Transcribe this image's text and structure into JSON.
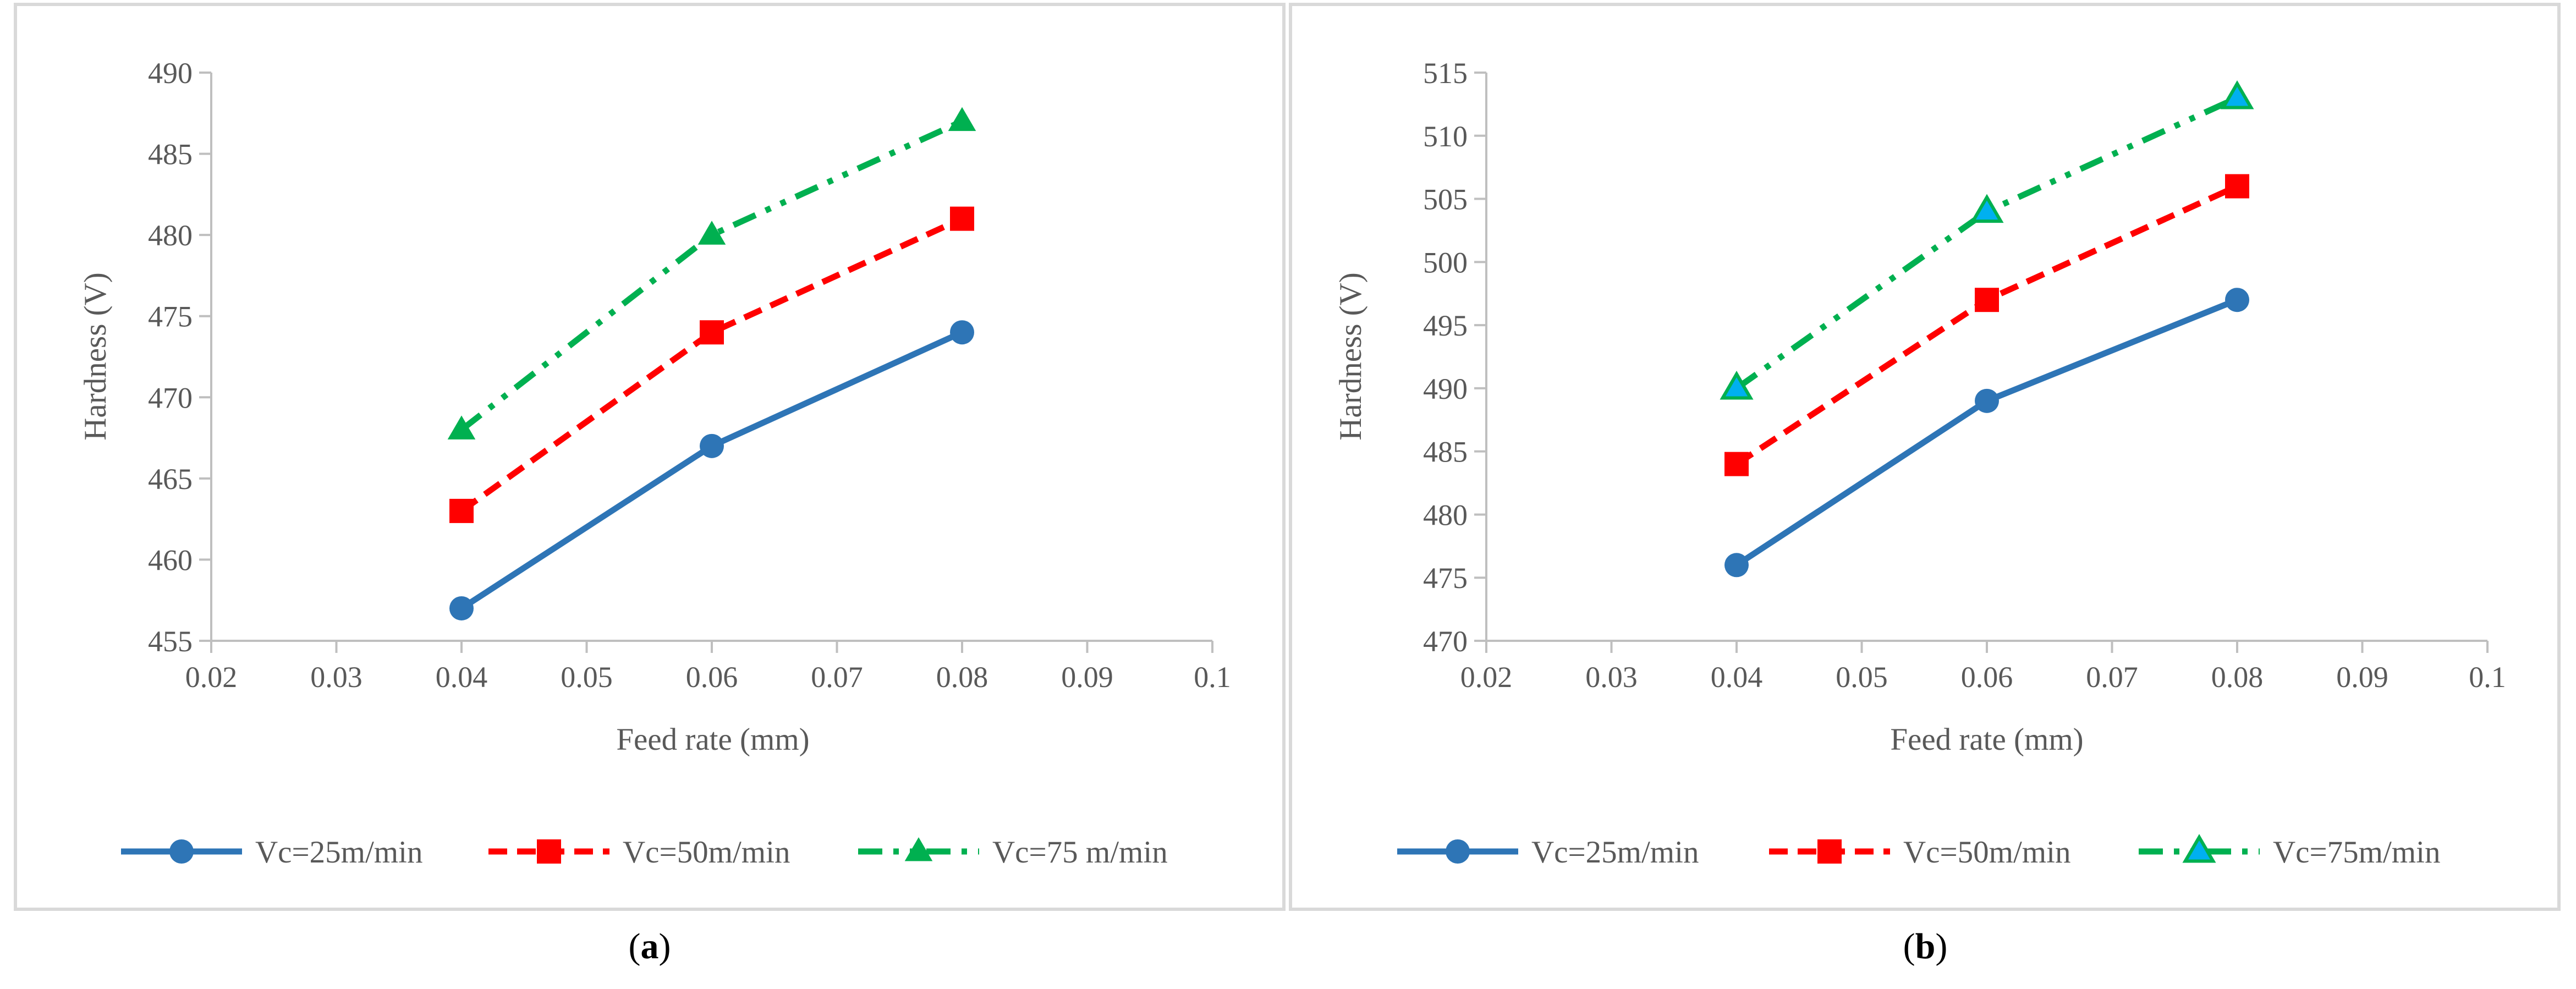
{
  "chart_data": [
    {
      "type": "line",
      "xlabel": "Feed rate (mm)",
      "ylabel": "Hardness (V)",
      "xlim": [
        0.02,
        0.1
      ],
      "xticks": [
        "0.02",
        "0.03",
        "0.04",
        "0.05",
        "0.06",
        "0.07",
        "0.08",
        "0.09",
        "0.1"
      ],
      "ylim": [
        455,
        490
      ],
      "yticks": [
        "455",
        "460",
        "465",
        "470",
        "475",
        "480",
        "485",
        "490"
      ],
      "grid": false,
      "legend_position": "bottom",
      "caption": {
        "open": "(",
        "letter": "a",
        "close": ")"
      },
      "series": [
        {
          "name": "Vc=25m/min",
          "x": [
            0.04,
            0.06,
            0.08
          ],
          "y": [
            457,
            467,
            474
          ],
          "color": "#2E75B6",
          "marker": "circle",
          "dash": "solid"
        },
        {
          "name": "Vc=50m/min",
          "x": [
            0.04,
            0.06,
            0.08
          ],
          "y": [
            463,
            474,
            481
          ],
          "color": "#FF0000",
          "marker": "square",
          "dash": "dash"
        },
        {
          "name": "Vc=75 m/min",
          "x": [
            0.04,
            0.06,
            0.08
          ],
          "y": [
            468,
            480,
            487
          ],
          "color": "#00B050",
          "marker": "triangle",
          "dash": "dashdotdot"
        }
      ]
    },
    {
      "type": "line",
      "xlabel": "Feed rate (mm)",
      "ylabel": "Hardness (V)",
      "xlim": [
        0.02,
        0.1
      ],
      "xticks": [
        "0.02",
        "0.03",
        "0.04",
        "0.05",
        "0.06",
        "0.07",
        "0.08",
        "0.09",
        "0.1"
      ],
      "ylim": [
        470,
        515
      ],
      "yticks": [
        "470",
        "475",
        "480",
        "485",
        "490",
        "495",
        "500",
        "505",
        "510",
        "515"
      ],
      "grid": false,
      "legend_position": "bottom",
      "caption": {
        "open": "(",
        "letter": "b",
        "close": ")"
      },
      "series": [
        {
          "name": "Vc=25m/min",
          "x": [
            0.04,
            0.06,
            0.08
          ],
          "y": [
            476,
            489,
            497
          ],
          "color": "#2E75B6",
          "marker": "circle",
          "dash": "solid"
        },
        {
          "name": "Vc=50m/min",
          "x": [
            0.04,
            0.06,
            0.08
          ],
          "y": [
            484,
            497,
            506
          ],
          "color": "#FF0000",
          "marker": "square",
          "dash": "dash"
        },
        {
          "name": "Vc=75m/min",
          "x": [
            0.04,
            0.06,
            0.08
          ],
          "y": [
            490,
            504,
            513
          ],
          "color": "#00B050",
          "marker": "triangle",
          "marker_fill": "#00B0F0",
          "dash": "dashdotdot"
        }
      ]
    }
  ]
}
